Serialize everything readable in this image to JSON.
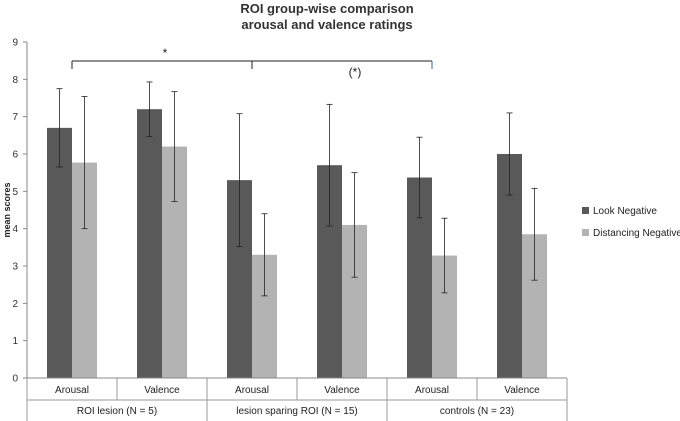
{
  "chart_data": {
    "type": "bar",
    "title_line1": "ROI group-wise comparison",
    "title_line2": "arousal and valence ratings",
    "ylabel": "mean scores",
    "xlabel": "",
    "ylim": [
      0,
      9
    ],
    "yticks": [
      "0",
      "1",
      "2",
      "3",
      "4",
      "5",
      "6",
      "7",
      "8",
      "9"
    ],
    "categories": [
      "Arousal",
      "Valence",
      "Arousal",
      "Valence",
      "Arousal",
      "Valence"
    ],
    "groups": [
      {
        "label": "ROI lesion (N = 5)"
      },
      {
        "label": "lesion sparing ROI (N = 15)"
      },
      {
        "label": "controls (N = 23)"
      }
    ],
    "series": [
      {
        "name": "Look Negative",
        "color": "#595959",
        "values": [
          6.7,
          7.2,
          5.3,
          5.7,
          5.37,
          6.0
        ],
        "errors": [
          1.05,
          0.73,
          1.78,
          1.63,
          1.08,
          1.1
        ]
      },
      {
        "name": "Distancing Negative",
        "color": "#b3b3b3",
        "values": [
          5.77,
          6.2,
          3.3,
          4.1,
          3.28,
          3.85
        ],
        "errors": [
          1.77,
          1.47,
          1.1,
          1.4,
          1.0,
          1.23
        ]
      }
    ],
    "annotations": [
      {
        "text": "*",
        "from_category": 0,
        "to_category": 4
      },
      {
        "text": "(*)",
        "from_category": 2,
        "to_category": 4
      }
    ]
  }
}
